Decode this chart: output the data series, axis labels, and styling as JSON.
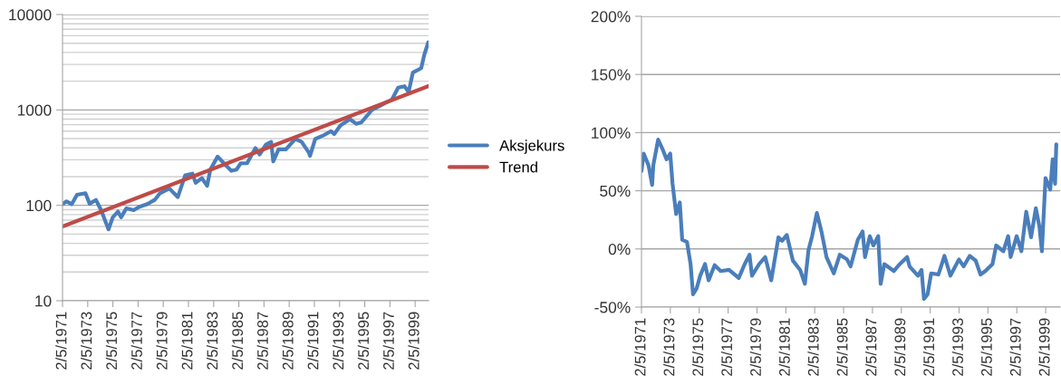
{
  "chart_data": [
    {
      "type": "line",
      "log": "y",
      "grid": "y",
      "legend": "right",
      "xlim": [
        "1971-02-05",
        "2000-03-01"
      ],
      "ylim": [
        10,
        10000
      ],
      "xticks": [
        {
          "value": "1971-02-05",
          "label": "2/5/1971"
        },
        {
          "value": "1973-02-05",
          "label": "2/5/1973"
        },
        {
          "value": "1975-02-05",
          "label": "2/5/1975"
        },
        {
          "value": "1977-02-05",
          "label": "2/5/1977"
        },
        {
          "value": "1979-02-05",
          "label": "2/5/1979"
        },
        {
          "value": "1981-02-05",
          "label": "2/5/1981"
        },
        {
          "value": "1983-02-05",
          "label": "2/5/1983"
        },
        {
          "value": "1985-02-05",
          "label": "2/5/1985"
        },
        {
          "value": "1987-02-05",
          "label": "2/5/1987"
        },
        {
          "value": "1989-02-05",
          "label": "2/5/1989"
        },
        {
          "value": "1991-02-05",
          "label": "2/5/1991"
        },
        {
          "value": "1993-02-05",
          "label": "2/5/1993"
        },
        {
          "value": "1995-02-05",
          "label": "2/5/1995"
        },
        {
          "value": "1997-02-05",
          "label": "2/5/1997"
        },
        {
          "value": "1999-02-05",
          "label": "2/5/1999"
        }
      ],
      "yticks": [
        10,
        100,
        1000,
        10000
      ],
      "series": [
        {
          "name": "Aksjekurs",
          "color": "#4a7ebb",
          "x": [
            "1971-02-05",
            "1971-06",
            "1971-11",
            "1972-04",
            "1972-12",
            "1973-04",
            "1973-10",
            "1974-03",
            "1974-10",
            "1975-02",
            "1975-07",
            "1975-10",
            "1976-03",
            "1976-10",
            "1977-03",
            "1977-11",
            "1978-06",
            "1978-11",
            "1979-08",
            "1980-04",
            "1980-11",
            "1981-06",
            "1981-09",
            "1982-03",
            "1982-08",
            "1982-11",
            "1983-06",
            "1983-12",
            "1984-07",
            "1984-12",
            "1985-04",
            "1985-10",
            "1986-06",
            "1986-10",
            "1987-04",
            "1987-09",
            "1987-11",
            "1988-04",
            "1988-11",
            "1989-08",
            "1990-02",
            "1990-09",
            "1990-10",
            "1991-03",
            "1991-10",
            "1992-06",
            "1992-09",
            "1993-03",
            "1993-12",
            "1994-06",
            "1994-11",
            "1995-04",
            "1995-09",
            "1996-05",
            "1996-10",
            "1997-04",
            "1997-10",
            "1998-04",
            "1998-08",
            "1998-12",
            "1999-08",
            "1999-11",
            "2000-02-20"
          ],
          "values": [
            103,
            110,
            103,
            129,
            134,
            104,
            114,
            89,
            56,
            75,
            86,
            75,
            93,
            89,
            96,
            103,
            114,
            134,
            150,
            122,
            206,
            215,
            172,
            193,
            160,
            237,
            324,
            276,
            230,
            237,
            276,
            276,
            398,
            341,
            434,
            462,
            288,
            386,
            386,
            496,
            462,
            356,
            330,
            496,
            535,
            599,
            557,
            688,
            800,
            715,
            742,
            860,
            1000,
            1110,
            1190,
            1280,
            1710,
            1770,
            1540,
            2460,
            2740,
            3820,
            5110
          ]
        },
        {
          "name": "Trend",
          "color": "#be4b48",
          "x": [
            "1971-02-05",
            "2000-03-01"
          ],
          "values": [
            60,
            1780
          ]
        }
      ]
    },
    {
      "type": "line",
      "grid": "y",
      "xlim": [
        "1971-02-05",
        "2000-02-05"
      ],
      "ylim": [
        -50,
        200
      ],
      "xticks": [
        {
          "value": "1971-02-05",
          "label": "2/5/1971"
        },
        {
          "value": "1973-02-05",
          "label": "2/5/1973"
        },
        {
          "value": "1975-02-05",
          "label": "2/5/1975"
        },
        {
          "value": "1977-02-05",
          "label": "2/5/1977"
        },
        {
          "value": "1979-02-05",
          "label": "2/5/1979"
        },
        {
          "value": "1981-02-05",
          "label": "2/5/1981"
        },
        {
          "value": "1983-02-05",
          "label": "2/5/1983"
        },
        {
          "value": "1985-02-05",
          "label": "2/5/1985"
        },
        {
          "value": "1987-02-05",
          "label": "2/5/1987"
        },
        {
          "value": "1989-02-05",
          "label": "2/5/1989"
        },
        {
          "value": "1991-02-05",
          "label": "2/5/1991"
        },
        {
          "value": "1993-02-05",
          "label": "2/5/1993"
        },
        {
          "value": "1995-02-05",
          "label": "2/5/1995"
        },
        {
          "value": "1997-02-05",
          "label": "2/5/1997"
        },
        {
          "value": "1999-02-05",
          "label": "2/5/1999"
        }
      ],
      "yticks": [
        {
          "value": -50,
          "label": "-50%"
        },
        {
          "value": 0,
          "label": "0%"
        },
        {
          "value": 50,
          "label": "50%"
        },
        {
          "value": 100,
          "label": "100%"
        },
        {
          "value": 150,
          "label": "150%"
        },
        {
          "value": 200,
          "label": "200%"
        }
      ],
      "series": [
        {
          "color": "#4a7ebb",
          "x": [
            "1971-02-05",
            "1971-04",
            "1971-08",
            "1971-11",
            "1971-12",
            "1972-04",
            "1972-08",
            "1972-11",
            "1973-02",
            "1973-04",
            "1973-07",
            "1973-10",
            "1973-12",
            "1974-04",
            "1974-07",
            "1974-09",
            "1974-12",
            "1975-03",
            "1975-07",
            "1975-10",
            "1976-03",
            "1976-08",
            "1977-03",
            "1977-11",
            "1978-04",
            "1978-08",
            "1978-10",
            "1979-04",
            "1979-09",
            "1980-02",
            "1980-08",
            "1980-11",
            "1981-03",
            "1981-08",
            "1982-02",
            "1982-06",
            "1982-09",
            "1982-12",
            "1983-04",
            "1983-08",
            "1983-12",
            "1984-06",
            "1984-11",
            "1985-05",
            "1985-08",
            "1986-02",
            "1986-06",
            "1986-08",
            "1986-12",
            "1987-03",
            "1987-07",
            "1987-09",
            "1987-12",
            "1988-08",
            "1988-12",
            "1989-07",
            "1989-09",
            "1990-04",
            "1990-07",
            "1990-09",
            "1990-12",
            "1991-03",
            "1991-09",
            "1992-02",
            "1992-07",
            "1993-02",
            "1993-06",
            "1993-11",
            "1994-04",
            "1994-08",
            "1994-12",
            "1995-06",
            "1995-09",
            "1996-03",
            "1996-07",
            "1996-09",
            "1997-02",
            "1997-06",
            "1997-10",
            "1998-02",
            "1998-06",
            "1998-09",
            "1998-11",
            "1999-02",
            "1999-06",
            "1999-08",
            "1999-10",
            "1999-11"
          ],
          "values": [
            67,
            82,
            72,
            55,
            72,
            94,
            85,
            77,
            82,
            56,
            30,
            40,
            8,
            6,
            -13,
            -39,
            -34,
            -23,
            -13,
            -27,
            -14,
            -19,
            -18,
            -25,
            -13,
            -5,
            -23,
            -13,
            -7,
            -27,
            10,
            7,
            12,
            -10,
            -18,
            -30,
            -1,
            11,
            31,
            14,
            -7,
            -21,
            -5,
            -9,
            -15,
            8,
            15,
            -7,
            11,
            3,
            11,
            -30,
            -13,
            -19,
            -14,
            -7,
            -15,
            -23,
            -18,
            -43,
            -39,
            -21,
            -22,
            -6,
            -23,
            -9,
            -15,
            -6,
            -10,
            -22,
            -19,
            -13,
            3,
            -2,
            11,
            -7,
            11,
            -2,
            32,
            10,
            35,
            19,
            -2,
            61,
            51,
            77,
            56,
            90
          ]
        }
      ]
    }
  ]
}
